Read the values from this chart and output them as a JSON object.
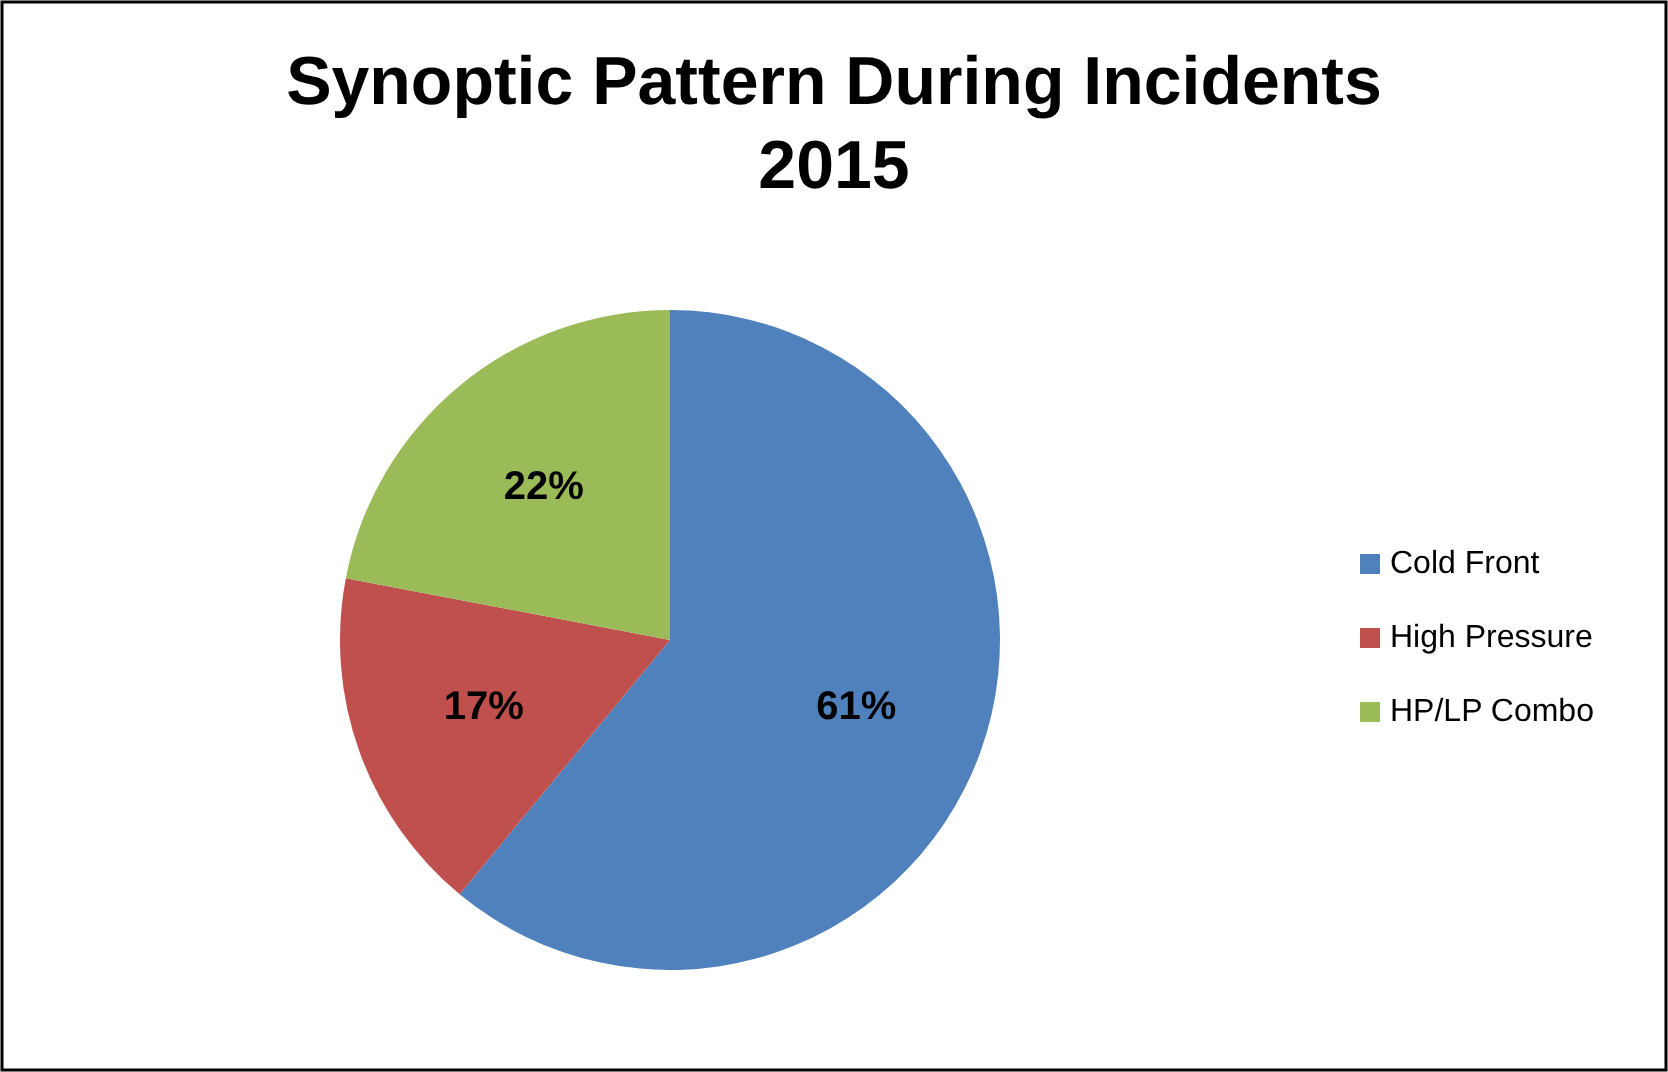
{
  "chart_data": {
    "type": "pie",
    "title": "Synoptic Pattern During Incidents\n2015",
    "categories": [
      "Cold Front",
      "High Pressure",
      "HP/LP Combo"
    ],
    "values": [
      61,
      17,
      22
    ],
    "colors": [
      "#4f81bd",
      "#c0504d",
      "#9bbb59"
    ],
    "value_labels": [
      "61%",
      "17%",
      "22%"
    ],
    "legend": "right"
  }
}
